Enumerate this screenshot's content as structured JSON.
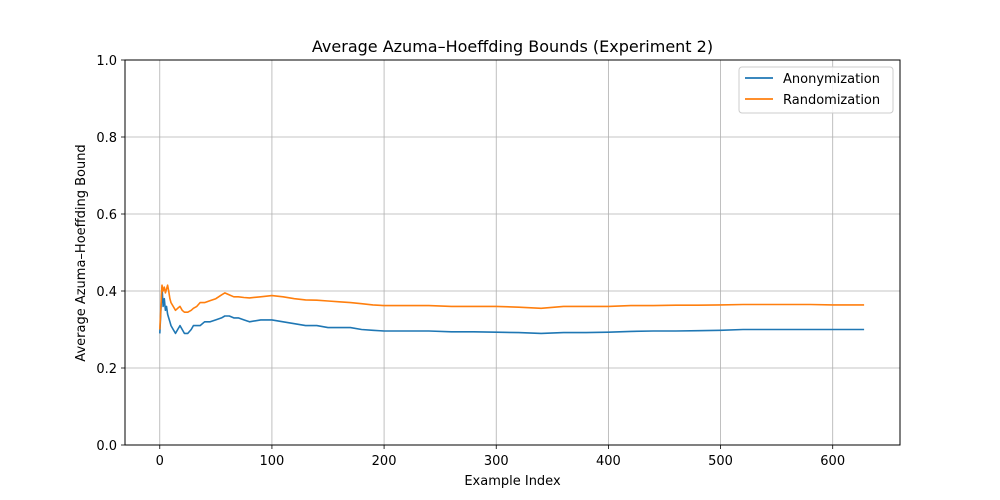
{
  "chart_data": {
    "type": "line",
    "title": "Average Azuma–Hoeffding Bounds (Experiment 2)",
    "xlabel": "Example Index",
    "ylabel": "Average Azuma–Hoeffding Bound",
    "xlim": [
      -31,
      660
    ],
    "ylim": [
      0.0,
      1.0
    ],
    "xticks": [
      0,
      100,
      200,
      300,
      400,
      500,
      600
    ],
    "yticks": [
      0.0,
      0.2,
      0.4,
      0.6,
      0.8,
      1.0
    ],
    "xtick_labels": [
      "0",
      "100",
      "200",
      "300",
      "400",
      "500",
      "600"
    ],
    "ytick_labels": [
      "0.0",
      "0.2",
      "0.4",
      "0.6",
      "0.8",
      "1.0"
    ],
    "grid": true,
    "legend_position": "top-right",
    "series": [
      {
        "name": "Anonymization",
        "color": "#1f77b4",
        "x": [
          0,
          2,
          3,
          4,
          5,
          6,
          7,
          8,
          9,
          10,
          12,
          14,
          16,
          18,
          20,
          22,
          25,
          28,
          30,
          33,
          36,
          40,
          45,
          50,
          55,
          58,
          62,
          66,
          70,
          75,
          80,
          90,
          100,
          110,
          120,
          130,
          140,
          150,
          160,
          170,
          180,
          190,
          200,
          220,
          240,
          260,
          280,
          300,
          320,
          340,
          360,
          380,
          400,
          420,
          440,
          460,
          480,
          500,
          520,
          540,
          560,
          580,
          600,
          620,
          628
        ],
        "y": [
          0.29,
          0.41,
          0.36,
          0.38,
          0.35,
          0.36,
          0.34,
          0.33,
          0.32,
          0.31,
          0.3,
          0.29,
          0.3,
          0.31,
          0.3,
          0.29,
          0.29,
          0.3,
          0.31,
          0.31,
          0.31,
          0.32,
          0.32,
          0.325,
          0.33,
          0.335,
          0.335,
          0.33,
          0.33,
          0.325,
          0.32,
          0.325,
          0.325,
          0.32,
          0.315,
          0.31,
          0.31,
          0.305,
          0.305,
          0.305,
          0.3,
          0.298,
          0.296,
          0.296,
          0.296,
          0.294,
          0.294,
          0.293,
          0.292,
          0.29,
          0.292,
          0.292,
          0.293,
          0.295,
          0.296,
          0.296,
          0.297,
          0.298,
          0.3,
          0.3,
          0.3,
          0.3,
          0.3,
          0.3,
          0.3
        ]
      },
      {
        "name": "Randomization",
        "color": "#ff7f0e",
        "x": [
          0,
          2,
          3,
          4,
          5,
          6,
          7,
          8,
          9,
          10,
          12,
          14,
          16,
          18,
          20,
          22,
          25,
          28,
          30,
          33,
          36,
          40,
          45,
          50,
          55,
          58,
          62,
          66,
          70,
          75,
          80,
          90,
          100,
          110,
          120,
          130,
          140,
          150,
          160,
          170,
          180,
          190,
          200,
          220,
          240,
          260,
          280,
          300,
          320,
          340,
          360,
          380,
          400,
          420,
          440,
          460,
          480,
          500,
          520,
          540,
          560,
          580,
          600,
          620,
          628
        ],
        "y": [
          0.3,
          0.415,
          0.4,
          0.41,
          0.395,
          0.405,
          0.415,
          0.4,
          0.38,
          0.37,
          0.36,
          0.35,
          0.355,
          0.36,
          0.35,
          0.345,
          0.345,
          0.35,
          0.355,
          0.36,
          0.37,
          0.37,
          0.375,
          0.38,
          0.39,
          0.395,
          0.39,
          0.385,
          0.385,
          0.383,
          0.382,
          0.385,
          0.388,
          0.385,
          0.38,
          0.377,
          0.376,
          0.374,
          0.372,
          0.37,
          0.367,
          0.364,
          0.362,
          0.362,
          0.362,
          0.36,
          0.36,
          0.36,
          0.358,
          0.355,
          0.36,
          0.36,
          0.36,
          0.362,
          0.362,
          0.363,
          0.363,
          0.364,
          0.365,
          0.365,
          0.365,
          0.365,
          0.364,
          0.364,
          0.364
        ]
      }
    ]
  }
}
